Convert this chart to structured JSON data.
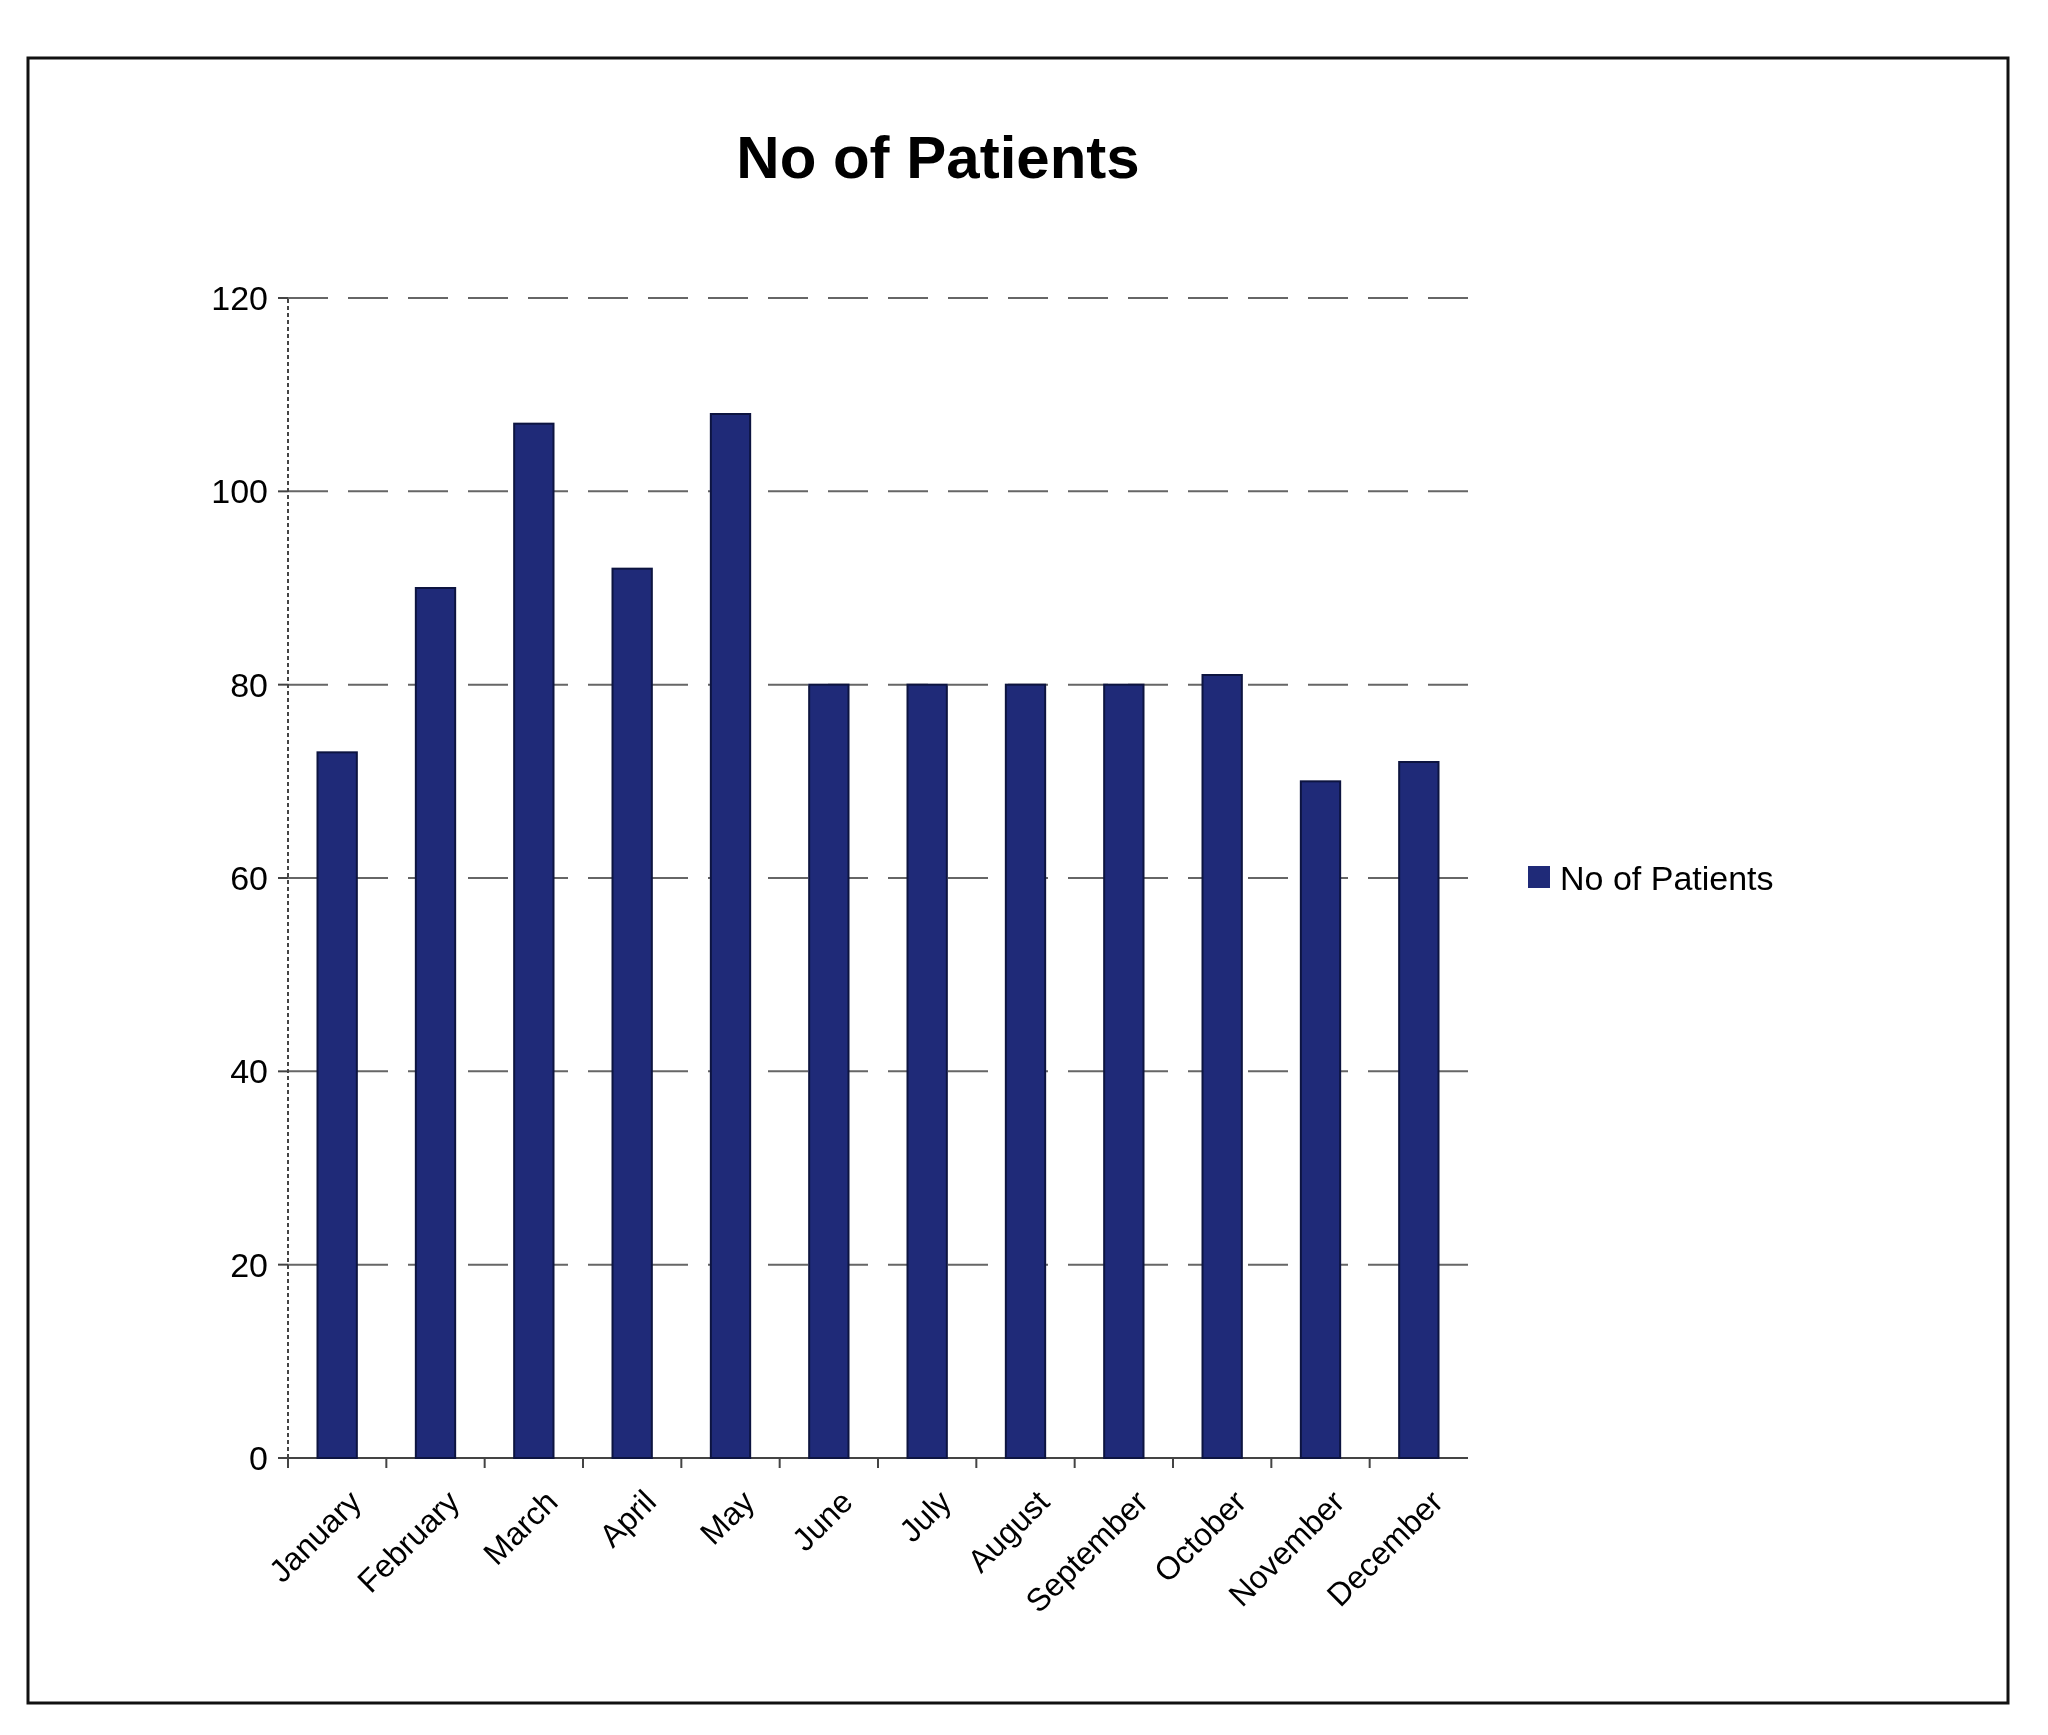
{
  "chart_data": {
    "type": "bar",
    "title": "No of Patients",
    "categories": [
      "January",
      "February",
      "March",
      "April",
      "May",
      "June",
      "July",
      "August",
      "September",
      "October",
      "November",
      "December"
    ],
    "series": [
      {
        "name": "No of Patients",
        "color": "#1f2a78",
        "values": [
          73,
          90,
          107,
          92,
          108,
          80,
          80,
          80,
          80,
          81,
          70,
          72
        ]
      }
    ],
    "ylim": [
      0,
      120
    ],
    "yticks": [
      0,
      20,
      40,
      60,
      80,
      100,
      120
    ],
    "grid": "y",
    "legend": "right"
  }
}
